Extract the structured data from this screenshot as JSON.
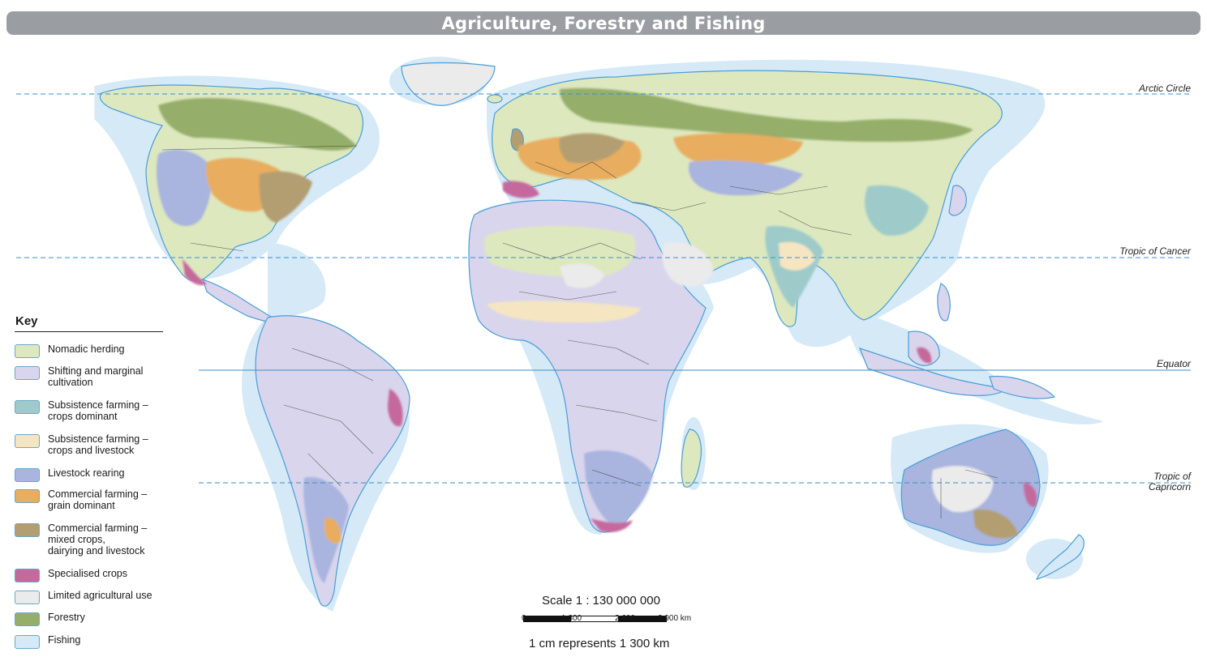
{
  "title": "Agriculture, Forestry and Fishing",
  "latitude_lines": [
    {
      "label": "Arctic Circle",
      "style": "dashed"
    },
    {
      "label": "Tropic of Cancer",
      "style": "dashed"
    },
    {
      "label": "Equator",
      "style": "solid"
    },
    {
      "label": "Tropic of\nCapricorn",
      "style": "dashed"
    }
  ],
  "key": {
    "title": "Key",
    "items": [
      {
        "label": "Nomadic herding",
        "color": "#dde8bf"
      },
      {
        "label": "Shifting and marginal\ncultivation",
        "color": "#d9d5ec"
      },
      {
        "label": "Subsistence farming –\ncrops dominant",
        "color": "#9ecbc9"
      },
      {
        "label": "Subsistence farming –\ncrops and livestock",
        "color": "#f5e6c1"
      },
      {
        "label": "Livestock rearing",
        "color": "#a9b4df"
      },
      {
        "label": "Commercial farming –\ngrain dominant",
        "color": "#e8ad5e"
      },
      {
        "label": "Commercial farming –\nmixed crops,\ndairying and livestock",
        "color": "#b39e72"
      },
      {
        "label": "Specialised crops",
        "color": "#c5699c"
      },
      {
        "label": "Limited agricultural use",
        "color": "#ebebeb"
      },
      {
        "label": "Forestry",
        "color": "#95ae6a"
      },
      {
        "label": "Fishing",
        "color": "#d5e9f7"
      }
    ]
  },
  "scale": {
    "title": "Scale 1 : 130 000 000",
    "ticks": [
      "0",
      "1 300",
      "2 600",
      "3 900 km"
    ],
    "note": "1 cm represents 1 300 km"
  },
  "colors": {
    "title_bar": "#9a9ea3",
    "sea_shelf": "#d5e9f7",
    "land_outline": "#4a9ed8",
    "border": "#333333",
    "latitude_line": "#3a8fc8"
  }
}
